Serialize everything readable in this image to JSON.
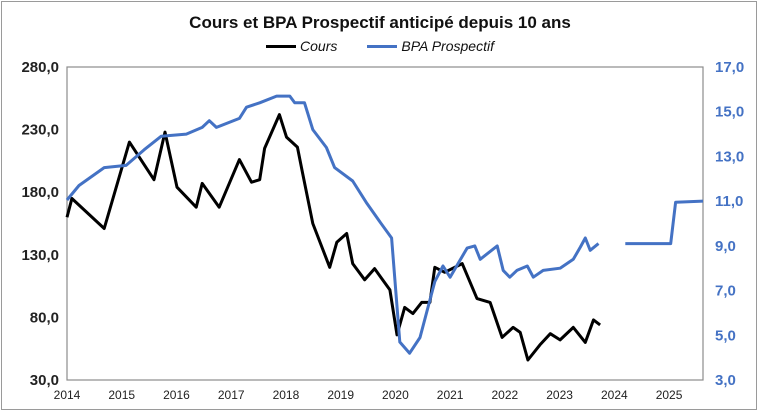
{
  "chart_data": {
    "type": "line",
    "title": "Cours et BPA Prospectif anticipé depuis 10 ans",
    "xlim": [
      2014,
      2025.62
    ],
    "x_ticks": [
      "2014",
      "2015",
      "2016",
      "2017",
      "2018",
      "2019",
      "2020",
      "2021",
      "2022",
      "2023",
      "2024",
      "2025"
    ],
    "y_left": {
      "lim": [
        30,
        280
      ],
      "ticks": [
        "30,0",
        "80,0",
        "130,0",
        "180,0",
        "230,0",
        "280,0"
      ]
    },
    "y_right": {
      "lim": [
        3,
        17
      ],
      "ticks": [
        "3,0",
        "5,0",
        "7,0",
        "9,0",
        "11,0",
        "13,0",
        "15,0",
        "17,0"
      ],
      "color": "#4472C4"
    },
    "grid": false,
    "legend": "top-center",
    "series": [
      {
        "name": "Cours",
        "axis": "left",
        "color": "#000000",
        "x": [
          2014.0,
          2014.09,
          2014.68,
          2015.14,
          2015.59,
          2015.79,
          2016.01,
          2016.36,
          2016.47,
          2016.78,
          2017.15,
          2017.37,
          2017.52,
          2017.61,
          2017.88,
          2018.01,
          2018.21,
          2018.3,
          2018.49,
          2018.8,
          2018.93,
          2019.11,
          2019.22,
          2019.44,
          2019.62,
          2019.9,
          2020.03,
          2020.17,
          2020.32,
          2020.48,
          2020.63,
          2020.72,
          2020.9,
          2021.22,
          2021.49,
          2021.73,
          2021.95,
          2022.15,
          2022.28,
          2022.42,
          2022.64,
          2022.83,
          2023.01,
          2023.25,
          2023.47,
          2023.62,
          2023.74
        ],
        "values": [
          160,
          175,
          151,
          220,
          190,
          228,
          184,
          168,
          187,
          168,
          206,
          188,
          190,
          215,
          242,
          224,
          216,
          196,
          155,
          120,
          140,
          147,
          123,
          110,
          119,
          102,
          66,
          88,
          83,
          92,
          92,
          120,
          116,
          123,
          95,
          92,
          64,
          72,
          68,
          46,
          58,
          67,
          62,
          72,
          60,
          78,
          74
        ]
      },
      {
        "name": "BPA Prospectif",
        "axis": "right",
        "color": "#4472C4",
        "x": [
          2014.0,
          2014.22,
          2014.68,
          2015.08,
          2015.41,
          2015.72,
          2016.18,
          2016.47,
          2016.6,
          2016.73,
          2017.15,
          2017.28,
          2017.52,
          2017.83,
          2018.07,
          2018.16,
          2018.34,
          2018.49,
          2018.74,
          2018.89,
          2019.22,
          2019.48,
          2019.71,
          2019.93,
          2020.08,
          2020.26,
          2020.45,
          2020.72,
          2020.87,
          2021.0,
          2021.31,
          2021.45,
          2021.55,
          2021.86,
          2021.97,
          2022.09,
          2022.22,
          2022.41,
          2022.52,
          2022.7,
          2023.01,
          2023.25,
          2023.38,
          2023.47,
          2023.56,
          2023.71
        ],
        "values": [
          11.05,
          11.7,
          12.5,
          12.6,
          13.3,
          13.9,
          14.0,
          14.3,
          14.6,
          14.3,
          14.7,
          15.2,
          15.4,
          15.7,
          15.7,
          15.4,
          15.4,
          14.2,
          13.4,
          12.5,
          11.9,
          10.9,
          10.1,
          9.35,
          4.7,
          4.2,
          4.9,
          7.4,
          8.1,
          7.6,
          8.9,
          9.0,
          8.4,
          9.0,
          7.9,
          7.6,
          7.9,
          8.1,
          7.6,
          7.9,
          8.0,
          8.4,
          8.95,
          9.35,
          8.8,
          9.1
        ]
      },
      {
        "name": "BPA Prospectif",
        "axis": "right",
        "color": "#4472C4",
        "legend": false,
        "x": [
          2024.2,
          2025.03,
          2025.12,
          2025.62
        ],
        "values": [
          9.1,
          9.1,
          10.95,
          11.0
        ]
      }
    ]
  }
}
